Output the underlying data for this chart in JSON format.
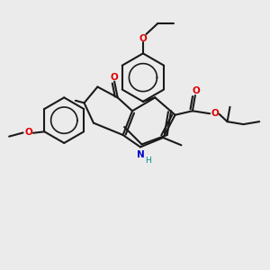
{
  "bg": "#ebebeb",
  "bc": "#1a1a1a",
  "oc": "#dd0000",
  "nc": "#0000cc",
  "hc": "#008888",
  "lw": 1.5,
  "fs": 7.5,
  "figsize": [
    3.0,
    3.0
  ],
  "dpi": 100,
  "xlim": [
    0,
    10
  ],
  "ylim": [
    0,
    10
  ]
}
